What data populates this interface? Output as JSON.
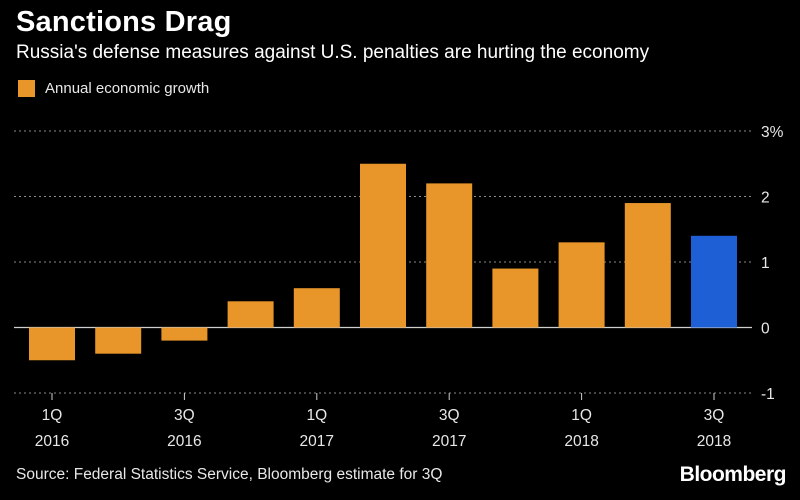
{
  "title": "Sanctions Drag",
  "subtitle": "Russia's defense measures against U.S. penalties are hurting the economy",
  "source": "Source: Federal Statistics Service, Bloomberg estimate for 3Q",
  "brand": "Bloomberg",
  "colors": {
    "background": "#000000",
    "bar_primary": "#e8952a",
    "bar_estimate": "#1f5fd6",
    "grid": "#8a8a8a",
    "text": "#e8e8e8"
  },
  "chart_data": {
    "type": "bar",
    "categories": [
      "1Q 2016",
      "2Q 2016",
      "3Q 2016",
      "4Q 2016",
      "1Q 2017",
      "2Q 2017",
      "3Q 2017",
      "4Q 2017",
      "1Q 2018",
      "2Q 2018",
      "3Q 2018"
    ],
    "x_tick_labels": [
      {
        "index": 0,
        "line1": "1Q",
        "line2": "2016"
      },
      {
        "index": 2,
        "line1": "3Q",
        "line2": "2016"
      },
      {
        "index": 4,
        "line1": "1Q",
        "line2": "2017"
      },
      {
        "index": 6,
        "line1": "3Q",
        "line2": "2017"
      },
      {
        "index": 8,
        "line1": "1Q",
        "line2": "2018"
      },
      {
        "index": 10,
        "line1": "3Q",
        "line2": "2018"
      }
    ],
    "series": [
      {
        "name": "Annual economic growth",
        "values": [
          -0.5,
          -0.4,
          -0.2,
          0.4,
          0.6,
          2.5,
          2.2,
          0.9,
          1.3,
          1.9,
          1.4
        ]
      }
    ],
    "highlight_index": 10,
    "ylim": [
      -1,
      3
    ],
    "y_ticks": [
      {
        "value": 3,
        "label": "3%"
      },
      {
        "value": 2,
        "label": "2"
      },
      {
        "value": 1,
        "label": "1"
      },
      {
        "value": 0,
        "label": "0"
      },
      {
        "value": -1,
        "label": "-1"
      }
    ],
    "grid": true,
    "legend": "top-left",
    "y_axis_position": "right"
  }
}
